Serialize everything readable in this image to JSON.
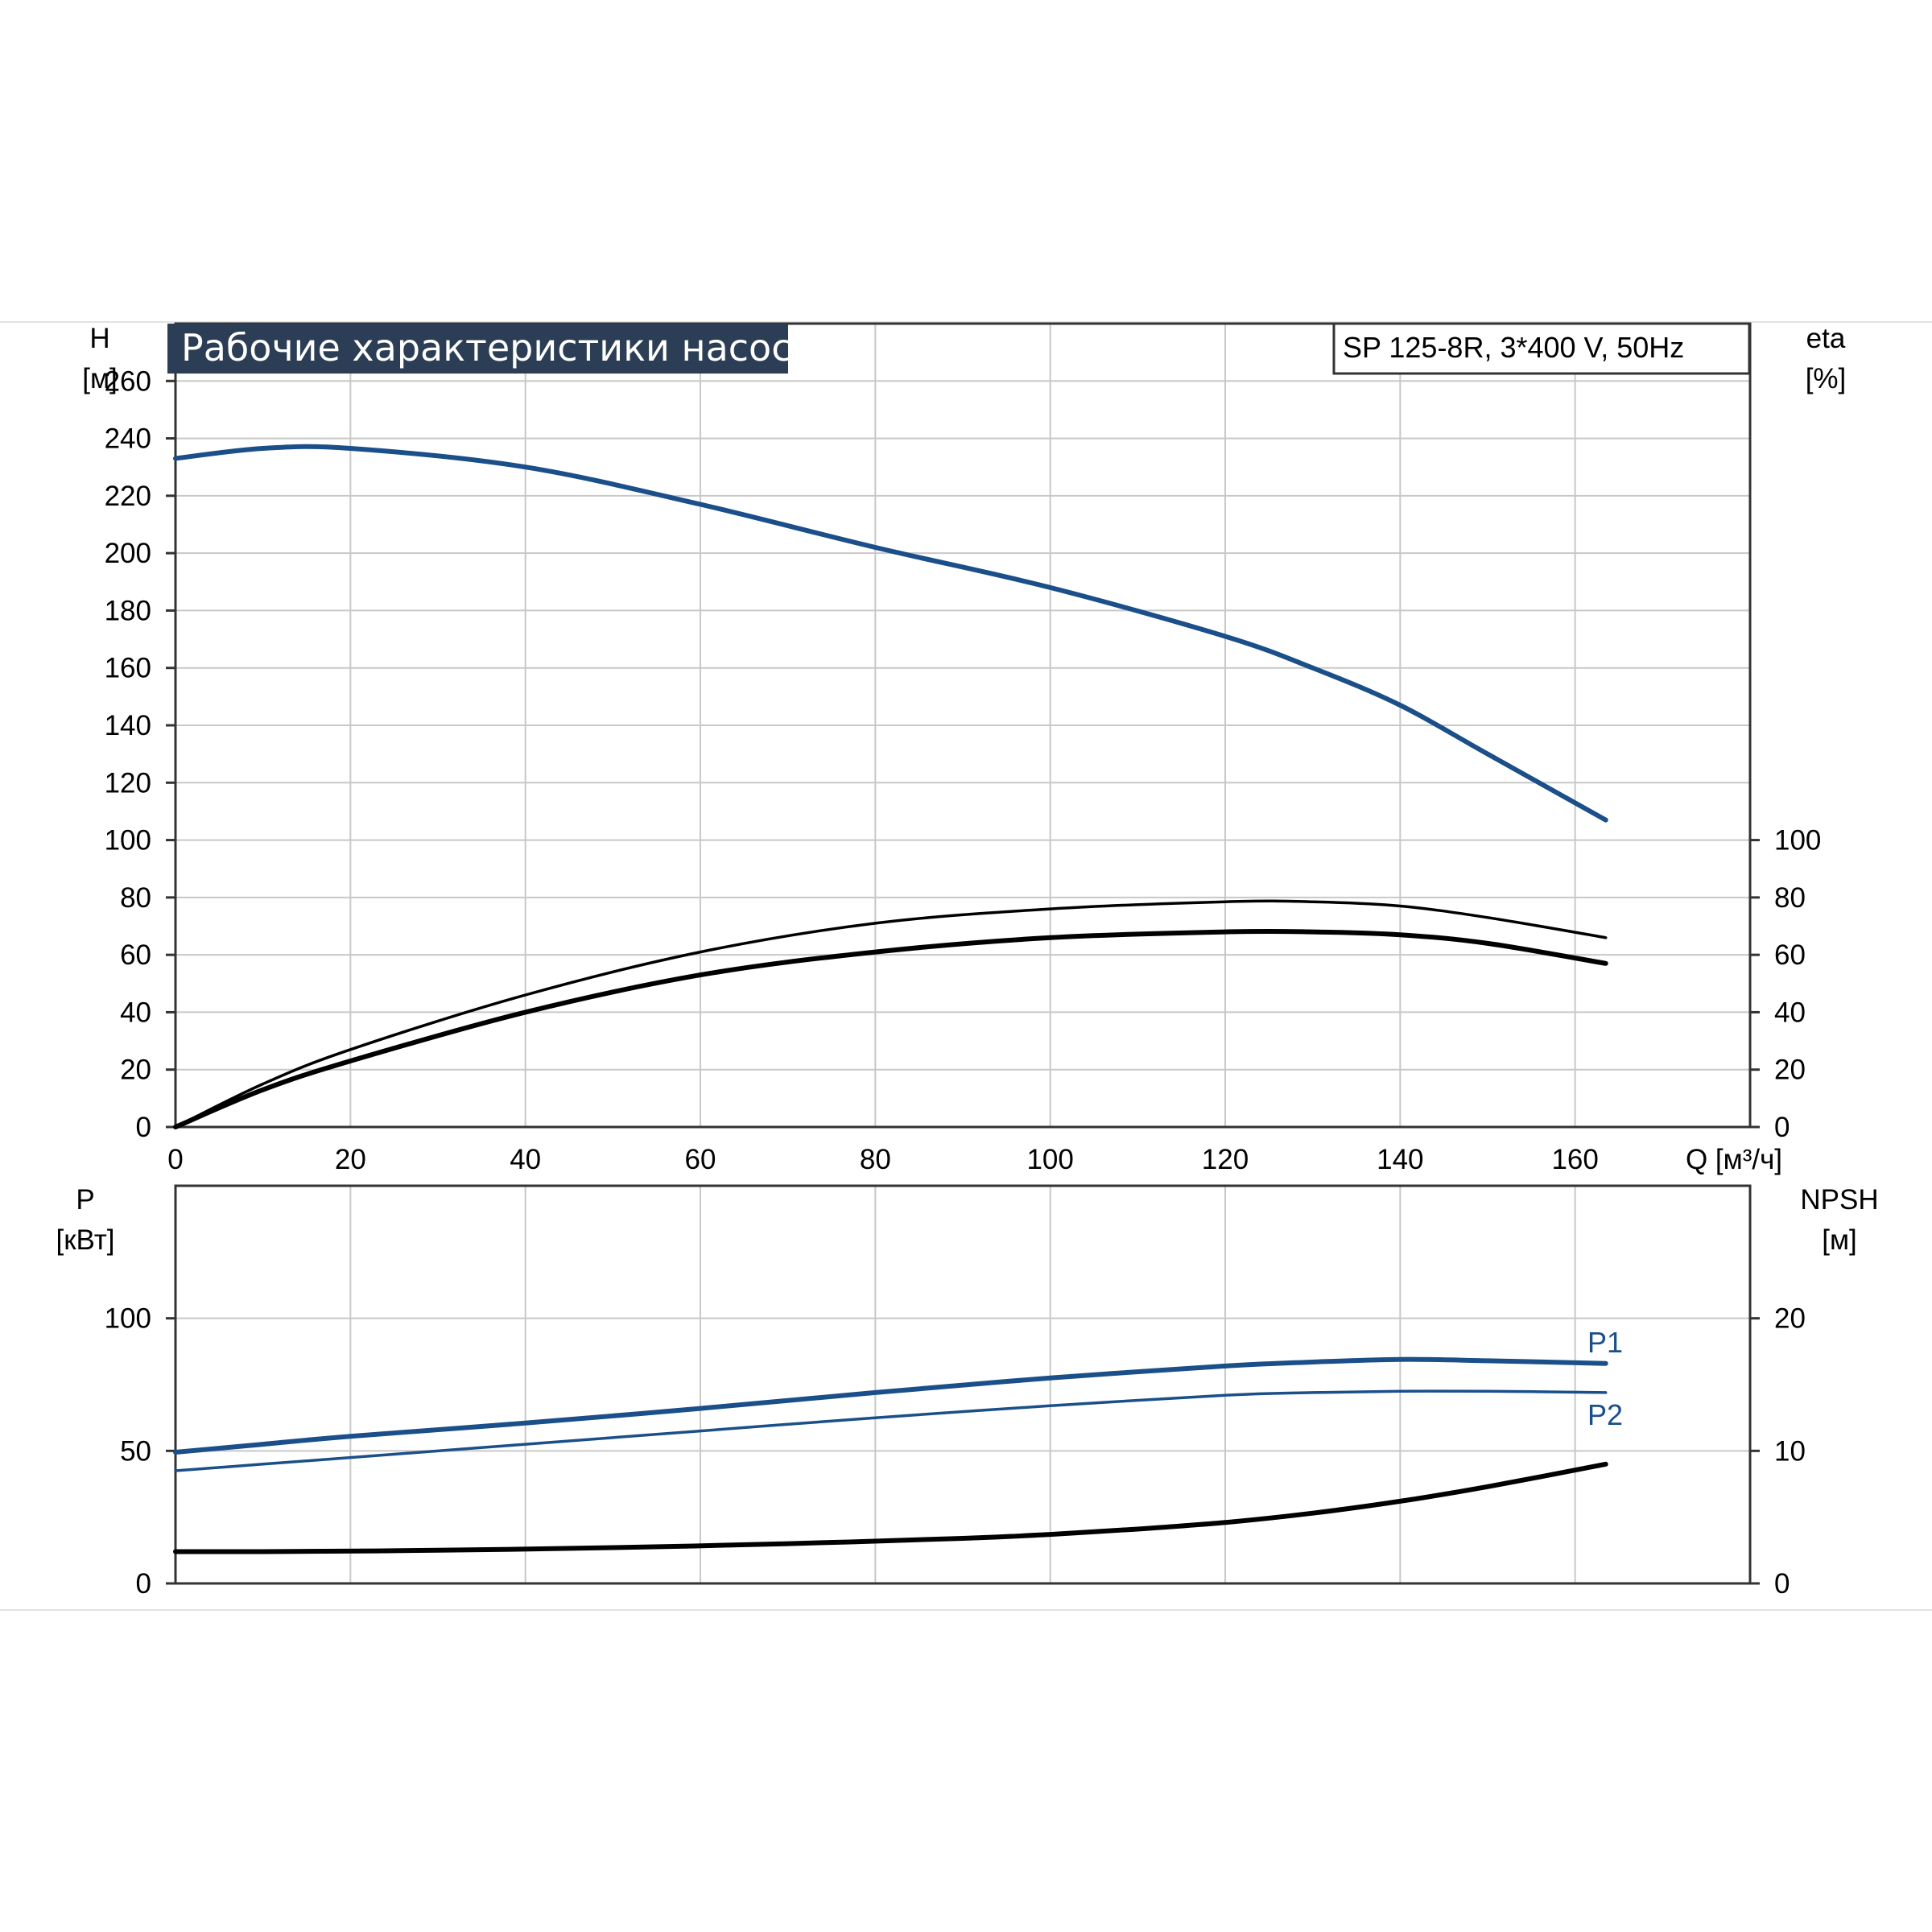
{
  "title": "Рабочие характеристики насоса",
  "model": "SP 125-8R, 3*400 V, 50Hz",
  "colors": {
    "blue_curve": "#1b4f8a",
    "black_curve": "#000000",
    "title_bg": "#2c3e55",
    "grid": "#c8c8c8"
  },
  "chart_data": [
    {
      "type": "line",
      "panel": "top",
      "x_axis": {
        "label": "Q [м³/ч]",
        "range": [
          0,
          180
        ],
        "ticks": [
          "0",
          "20",
          "40",
          "60",
          "80",
          "100",
          "120",
          "140",
          "160"
        ]
      },
      "y_left": {
        "label_line1": "H",
        "label_line2": "[м]",
        "range": [
          0,
          280
        ],
        "ticks": [
          "0",
          "20",
          "40",
          "60",
          "80",
          "100",
          "120",
          "140",
          "160",
          "180",
          "200",
          "220",
          "240",
          "260"
        ]
      },
      "y_right": {
        "label_line1": "eta",
        "label_line2": "[%]",
        "range": [
          0,
          280
        ],
        "ticks": [
          "0",
          "20",
          "40",
          "60",
          "80",
          "100"
        ]
      },
      "grid": true,
      "series": [
        {
          "axis": "left",
          "style": "blue",
          "points": [
            [
              0,
              233
            ],
            [
              10,
              236.5
            ],
            [
              20,
              236.5
            ],
            [
              40,
              230
            ],
            [
              60,
              217
            ],
            [
              80,
              202
            ],
            [
              100,
              188
            ],
            [
              120,
              171
            ],
            [
              130,
              160
            ],
            [
              140,
              147
            ],
            [
              150,
              130
            ],
            [
              163.5,
              107
            ]
          ]
        },
        {
          "axis": "right",
          "style": "black-thin",
          "points": [
            [
              0,
              0
            ],
            [
              10,
              15
            ],
            [
              20,
              27
            ],
            [
              40,
              46
            ],
            [
              60,
              61
            ],
            [
              80,
              71
            ],
            [
              100,
              76
            ],
            [
              120,
              78.5
            ],
            [
              130,
              78.5
            ],
            [
              140,
              77
            ],
            [
              150,
              73
            ],
            [
              163.5,
              66
            ]
          ]
        },
        {
          "axis": "right",
          "style": "black-thick",
          "points": [
            [
              0,
              0
            ],
            [
              10,
              13
            ],
            [
              20,
              23
            ],
            [
              40,
              40
            ],
            [
              60,
              53
            ],
            [
              80,
              61
            ],
            [
              100,
              66
            ],
            [
              120,
              68
            ],
            [
              130,
              68
            ],
            [
              140,
              67
            ],
            [
              150,
              64
            ],
            [
              163.5,
              57
            ]
          ]
        }
      ]
    },
    {
      "type": "line",
      "panel": "bottom",
      "x_axis": {
        "range": [
          0,
          180
        ]
      },
      "y_left": {
        "label_line1": "P",
        "label_line2": "[кВт]",
        "range": [
          0,
          150
        ],
        "ticks": [
          "0",
          "50",
          "100"
        ]
      },
      "y_right": {
        "label_line1": "NPSH",
        "label_line2": "[м]",
        "range": [
          0,
          30
        ],
        "ticks": [
          "0",
          "10",
          "20"
        ]
      },
      "grid": true,
      "series": [
        {
          "name": "P1",
          "axis": "left",
          "style": "blue-thick",
          "points": [
            [
              0,
              49.5
            ],
            [
              10,
              52.5
            ],
            [
              20,
              55.5
            ],
            [
              40,
              60.5
            ],
            [
              60,
              66
            ],
            [
              80,
              72
            ],
            [
              100,
              77.5
            ],
            [
              120,
              82
            ],
            [
              130,
              83.5
            ],
            [
              140,
              84.5
            ],
            [
              150,
              84
            ],
            [
              163.5,
              83
            ]
          ]
        },
        {
          "name": "P2",
          "axis": "left",
          "style": "blue-thin",
          "points": [
            [
              0,
              42.5
            ],
            [
              10,
              45
            ],
            [
              20,
              47.5
            ],
            [
              40,
              52.5
            ],
            [
              60,
              57.5
            ],
            [
              80,
              62.5
            ],
            [
              100,
              67
            ],
            [
              120,
              71
            ],
            [
              130,
              72
            ],
            [
              140,
              72.5
            ],
            [
              150,
              72.5
            ],
            [
              163.5,
              72
            ]
          ]
        },
        {
          "axis": "right",
          "style": "black-thick",
          "points": [
            [
              0,
              2.4
            ],
            [
              10,
              2.4
            ],
            [
              30,
              2.5
            ],
            [
              50,
              2.7
            ],
            [
              70,
              3.0
            ],
            [
              90,
              3.4
            ],
            [
              100,
              3.7
            ],
            [
              110,
              4.1
            ],
            [
              120,
              4.6
            ],
            [
              130,
              5.3
            ],
            [
              140,
              6.2
            ],
            [
              150,
              7.3
            ],
            [
              163.5,
              9.0
            ]
          ]
        }
      ]
    }
  ]
}
